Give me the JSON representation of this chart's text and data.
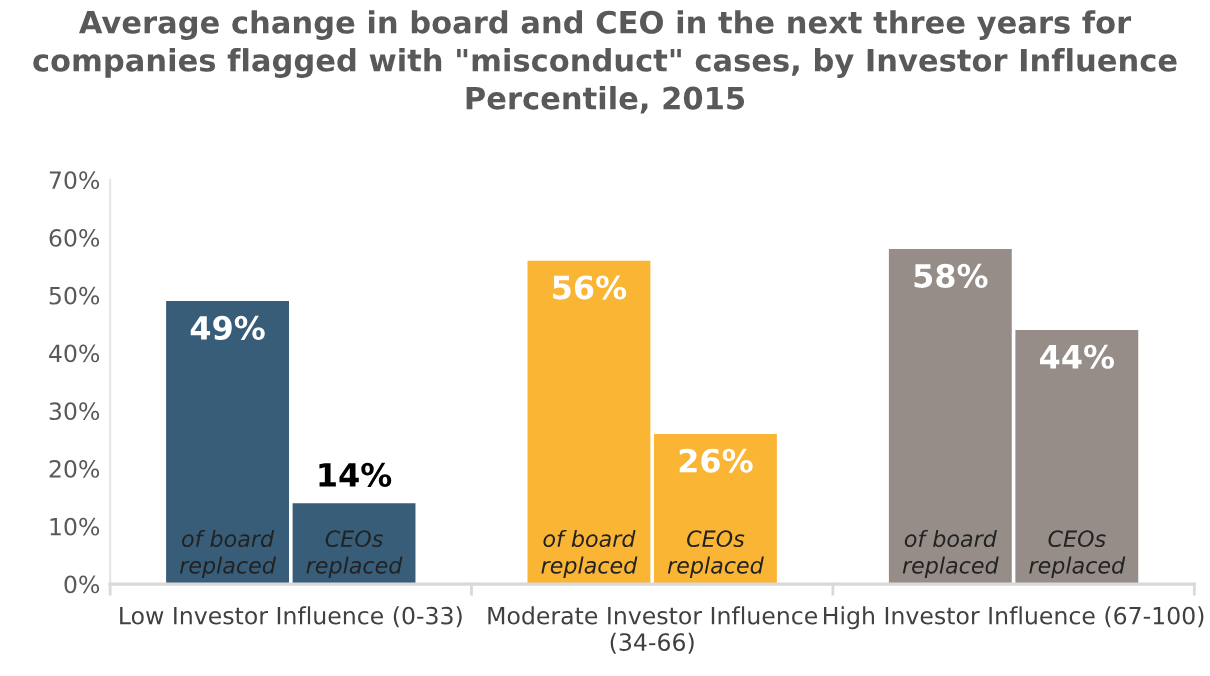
{
  "chart_data": {
    "type": "bar",
    "title": "Average change in board and CEO in the next three years for companies flagged with \"misconduct\" cases, by Investor Influence Percentile, 2015",
    "categories": [
      "Low Investor Influence (0-33)",
      "Moderate Investor Influence (34-66)",
      "High Investor Influence (67-100)"
    ],
    "series": [
      {
        "name": "of board replaced",
        "colors": [
          "#375d78",
          "#fbb535",
          "#968d89"
        ],
        "values": [
          49,
          56,
          58
        ],
        "value_labels": [
          "49%",
          "56%",
          "58%"
        ]
      },
      {
        "name": "CEOs replaced",
        "colors": [
          "#375d78",
          "#fbb535",
          "#968d89"
        ],
        "values": [
          14,
          26,
          44
        ],
        "value_labels": [
          "14%",
          "26%",
          "44%"
        ]
      }
    ],
    "ylim": [
      0,
      70
    ],
    "yticks": [
      {
        "value": 0,
        "label": "0%"
      },
      {
        "value": 10,
        "label": "10%"
      },
      {
        "value": 20,
        "label": "20%"
      },
      {
        "value": 30,
        "label": "30%"
      },
      {
        "value": 40,
        "label": "40%"
      },
      {
        "value": 50,
        "label": "50%"
      },
      {
        "value": 60,
        "label": "60%"
      },
      {
        "value": 70,
        "label": "70%"
      }
    ],
    "grid": false,
    "legend": false
  }
}
